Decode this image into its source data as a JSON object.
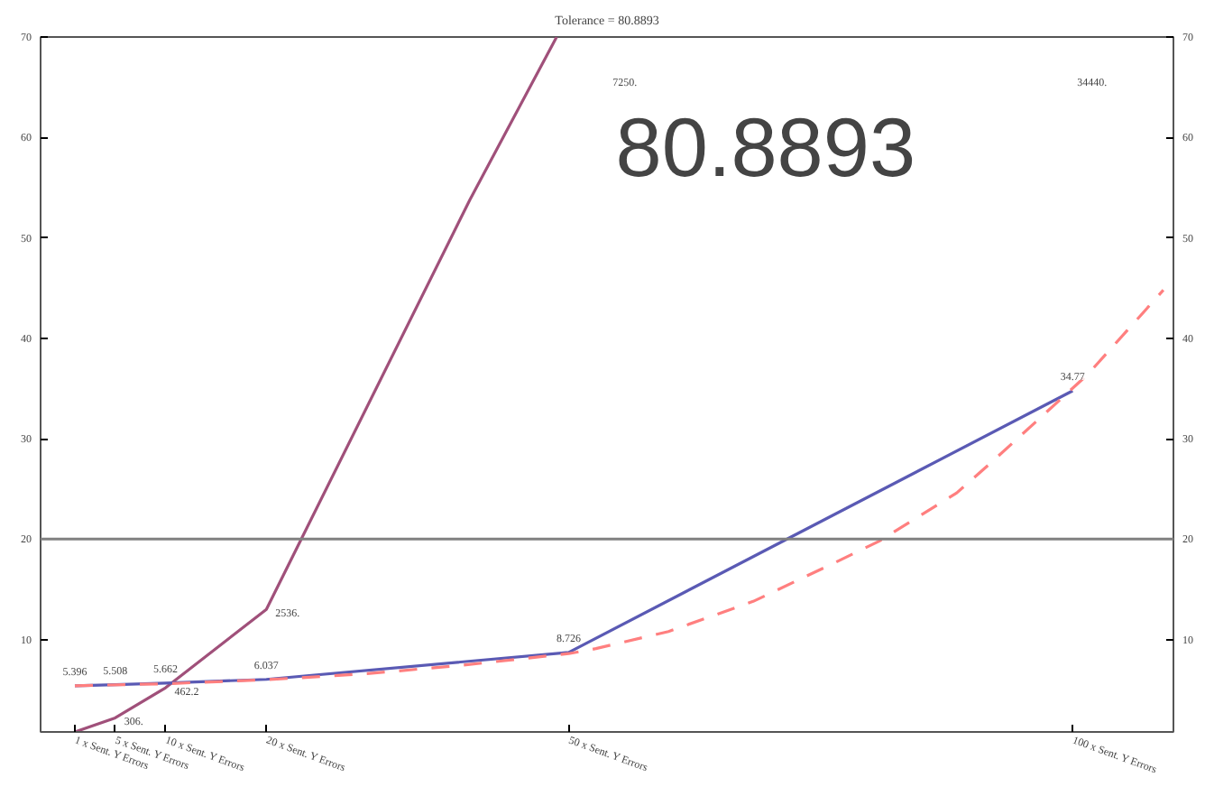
{
  "chart_data": {
    "type": "line",
    "title": "Tolerance = 80.8893",
    "x": [
      1,
      5,
      10,
      20,
      50,
      100
    ],
    "xlim": [
      -2.4,
      110
    ],
    "xticks": [
      {
        "value": 1,
        "label": "1 x Sent. Y Errors"
      },
      {
        "value": 5,
        "label": "5 x Sent. Y Errors"
      },
      {
        "value": 10,
        "label": "10 x Sent. Y Errors"
      },
      {
        "value": 20,
        "label": "20 x Sent. Y Errors"
      },
      {
        "value": 50,
        "label": "50 x Sent. Y Errors"
      },
      {
        "value": 100,
        "label": "100 x Sent. Y Errors"
      }
    ],
    "ylim": [
      0.8,
      70
    ],
    "yticks": [
      10,
      20,
      30,
      40,
      50,
      60,
      70
    ],
    "y2lim": [
      0.8,
      70
    ],
    "y2ticks": [
      10,
      20,
      30,
      40,
      50,
      60,
      70
    ],
    "series": [
      {
        "color": "#a0507a",
        "x": [
          1,
          5,
          10,
          20,
          40.2,
          48.8
        ],
        "values": [
          0.8,
          2.2,
          5.2,
          13,
          53.8,
          70
        ]
      },
      {
        "color": "#5a5ab4",
        "values": [
          5.396,
          5.508,
          5.662,
          6.037,
          8.726,
          34.77
        ],
        "value_labels": [
          "5.396",
          "5.508",
          "5.662",
          "6.037",
          "8.726",
          "34.77"
        ]
      },
      {
        "color": "#ff7f7f",
        "line_style": "dashed",
        "x": [
          1,
          10,
          20,
          30,
          40,
          50,
          52.7,
          59.9,
          68.3,
          76.5,
          80.8,
          88.5,
          92,
          101.5,
          109
        ],
        "values": [
          5.4,
          5.6,
          6.0,
          6.6,
          7.5,
          8.6,
          9.1,
          10.8,
          13.8,
          17.7,
          19.8,
          24.6,
          27.7,
          36.4,
          44.8
        ]
      }
    ],
    "ref_lines": [
      {
        "axis": "y",
        "value": 20,
        "color": "#808080"
      }
    ],
    "annotations": [
      "80.8893",
      "7250.",
      "34440.",
      {
        "text": "306.",
        "x": 5,
        "y": 2.2
      },
      {
        "text": "462.2",
        "x": 10,
        "y": 5.2
      },
      {
        "text": "2536.",
        "x": 20,
        "y": 13
      }
    ],
    "marker": "none",
    "grid": false
  }
}
